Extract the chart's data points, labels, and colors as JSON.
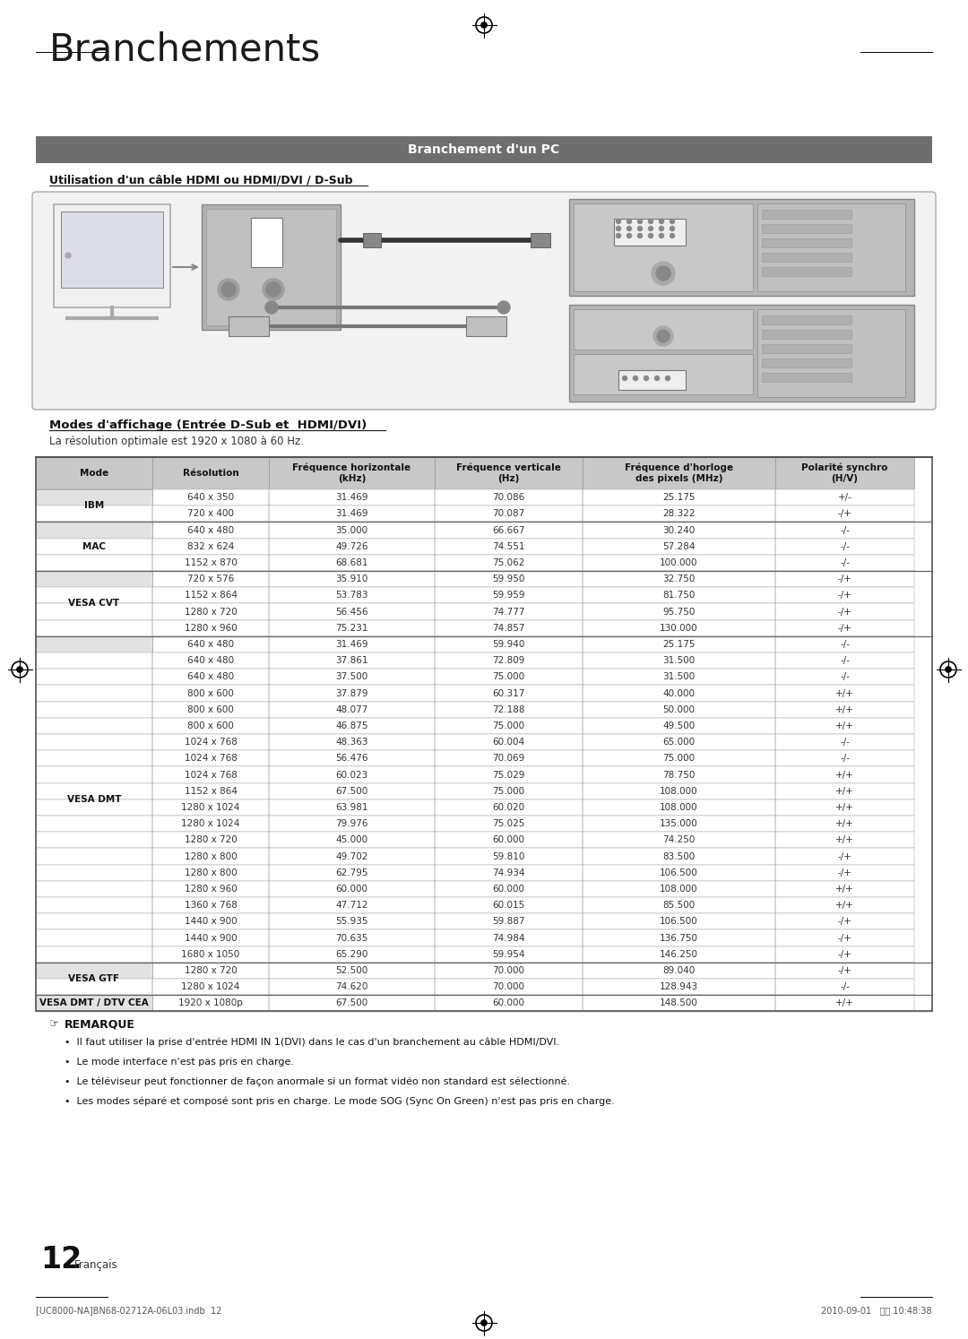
{
  "page_title": "Branchements",
  "section_header": "Branchement d'un PC",
  "subsection_title": "Utilisation d'un câble HDMI ou HDMI/DVI / D-Sub",
  "modes_title": "Modes d'affichage (Entrée D-Sub et  HDMI/DVI)",
  "resolution_note": "La résolution optimale est 1920 x 1080 à 60 Hz.",
  "table_headers": [
    "Mode",
    "Résolution",
    "Fréquence horizontale\n(kHz)",
    "Fréquence verticale\n(Hz)",
    "Fréquence d'horloge\ndes pixels (MHz)",
    "Polarité synchro\n(H/V)"
  ],
  "table_data": [
    [
      "IBM",
      "640 x 350",
      "31.469",
      "70.086",
      "25.175",
      "+/-"
    ],
    [
      "IBM",
      "720 x 400",
      "31.469",
      "70.087",
      "28.322",
      "-/+"
    ],
    [
      "MAC",
      "640 x 480",
      "35.000",
      "66.667",
      "30.240",
      "-/-"
    ],
    [
      "MAC",
      "832 x 624",
      "49.726",
      "74.551",
      "57.284",
      "-/-"
    ],
    [
      "MAC",
      "1152 x 870",
      "68.681",
      "75.062",
      "100.000",
      "-/-"
    ],
    [
      "VESA CVT",
      "720 x 576",
      "35.910",
      "59.950",
      "32.750",
      "-/+"
    ],
    [
      "VESA CVT",
      "1152 x 864",
      "53.783",
      "59.959",
      "81.750",
      "-/+"
    ],
    [
      "VESA CVT",
      "1280 x 720",
      "56.456",
      "74.777",
      "95.750",
      "-/+"
    ],
    [
      "VESA CVT",
      "1280 x 960",
      "75.231",
      "74.857",
      "130.000",
      "-/+"
    ],
    [
      "VESA DMT",
      "640 x 480",
      "31.469",
      "59.940",
      "25.175",
      "-/-"
    ],
    [
      "VESA DMT",
      "640 x 480",
      "37.861",
      "72.809",
      "31.500",
      "-/-"
    ],
    [
      "VESA DMT",
      "640 x 480",
      "37.500",
      "75.000",
      "31.500",
      "-/-"
    ],
    [
      "VESA DMT",
      "800 x 600",
      "37.879",
      "60.317",
      "40.000",
      "+/+"
    ],
    [
      "VESA DMT",
      "800 x 600",
      "48.077",
      "72.188",
      "50.000",
      "+/+"
    ],
    [
      "VESA DMT",
      "800 x 600",
      "46.875",
      "75.000",
      "49.500",
      "+/+"
    ],
    [
      "VESA DMT",
      "1024 x 768",
      "48.363",
      "60.004",
      "65.000",
      "-/-"
    ],
    [
      "VESA DMT",
      "1024 x 768",
      "56.476",
      "70.069",
      "75.000",
      "-/-"
    ],
    [
      "VESA DMT",
      "1024 x 768",
      "60.023",
      "75.029",
      "78.750",
      "+/+"
    ],
    [
      "VESA DMT",
      "1152 x 864",
      "67.500",
      "75.000",
      "108.000",
      "+/+"
    ],
    [
      "VESA DMT",
      "1280 x 1024",
      "63.981",
      "60.020",
      "108.000",
      "+/+"
    ],
    [
      "VESA DMT",
      "1280 x 1024",
      "79.976",
      "75.025",
      "135.000",
      "+/+"
    ],
    [
      "VESA DMT",
      "1280 x 720",
      "45.000",
      "60.000",
      "74.250",
      "+/+"
    ],
    [
      "VESA DMT",
      "1280 x 800",
      "49.702",
      "59.810",
      "83.500",
      "-/+"
    ],
    [
      "VESA DMT",
      "1280 x 800",
      "62.795",
      "74.934",
      "106.500",
      "-/+"
    ],
    [
      "VESA DMT",
      "1280 x 960",
      "60.000",
      "60.000",
      "108.000",
      "+/+"
    ],
    [
      "VESA DMT",
      "1360 x 768",
      "47.712",
      "60.015",
      "85.500",
      "+/+"
    ],
    [
      "VESA DMT",
      "1440 x 900",
      "55.935",
      "59.887",
      "106.500",
      "-/+"
    ],
    [
      "VESA DMT",
      "1440 x 900",
      "70.635",
      "74.984",
      "136.750",
      "-/+"
    ],
    [
      "VESA DMT",
      "1680 x 1050",
      "65.290",
      "59.954",
      "146.250",
      "-/+"
    ],
    [
      "VESA GTF",
      "1280 x 720",
      "52.500",
      "70.000",
      "89.040",
      "-/+"
    ],
    [
      "VESA GTF",
      "1280 x 1024",
      "74.620",
      "70.000",
      "128.943",
      "-/-"
    ],
    [
      "VESA DMT / DTV CEA",
      "1920 x 1080p",
      "67.500",
      "60.000",
      "148.500",
      "+/+"
    ]
  ],
  "remarks_title": "REMARQUE",
  "remarks": [
    "Il faut utiliser la prise d'entrée HDMI IN 1(DVI) dans le cas d'un branchement au câble HDMI/DVI.",
    "Le mode interface n'est pas pris en charge.",
    "Le téléviseur peut fonctionner de façon anormale si un format vidéo non standard est sélectionné.",
    "Les modes séparé et composé sont pris en charge. Le mode SOG (Sync On Green) n'est pas pris en charge."
  ],
  "page_number": "12",
  "page_lang": "Français",
  "footer_left": "[UC8000-NA]BN68-02712A-06L03.indb  12",
  "footer_right": "2010-09-01   오전 10:48:38",
  "header_color": "#6e6e6e",
  "header_text_color": "#ffffff",
  "table_header_bg": "#c8c8c8",
  "table_border_color": "#999999",
  "mode_col_bg": "#e2e2e2",
  "bg_color": "#ffffff",
  "diagram_bg": "#f2f2f2",
  "diagram_border": "#aaaaaa",
  "pc_panel_bg": "#b8b8b8",
  "tv_bg": "#e8e8e8"
}
